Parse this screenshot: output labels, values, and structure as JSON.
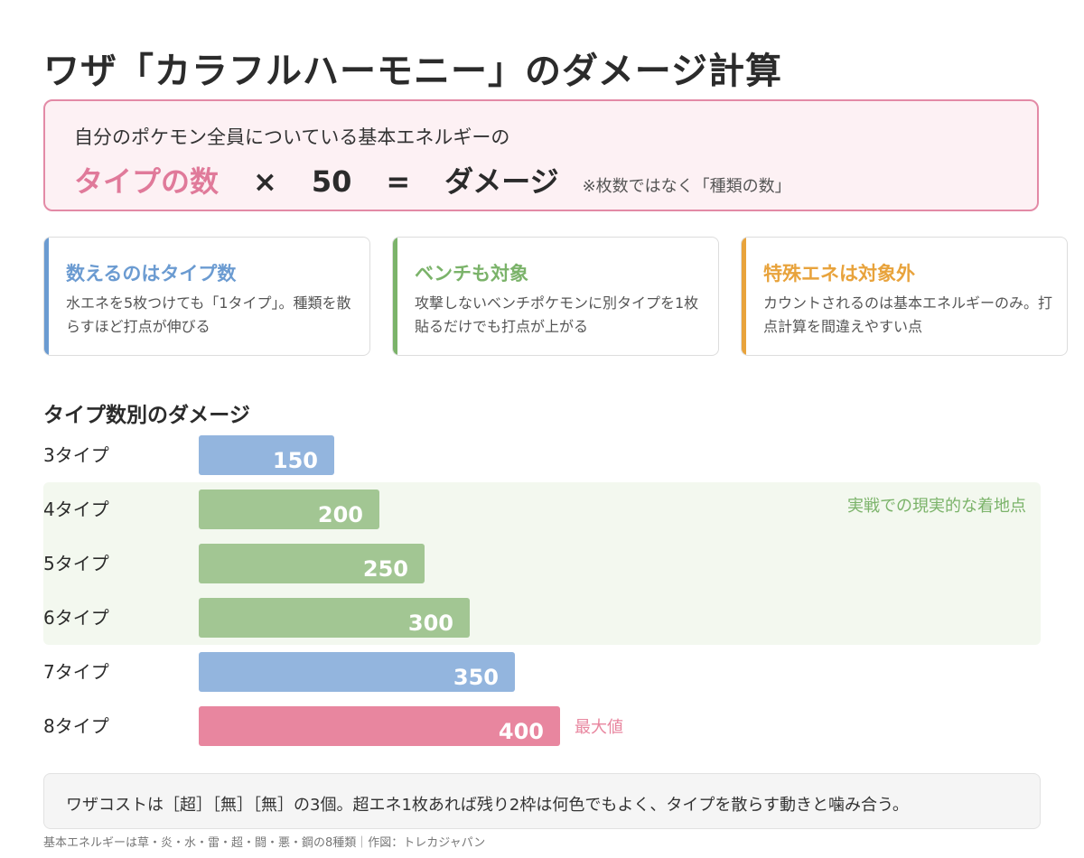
{
  "title": "ワザ「カラフルハーモニー」のダメージ計算",
  "formula": {
    "intro": "自分のポケモン全員についている基本エネルギーの",
    "term": "タイプの数",
    "times": "×",
    "multiplier": "50",
    "equals": "=",
    "result": "ダメージ",
    "note": "※枚数ではなく「種類の数」"
  },
  "cards": [
    {
      "title": "数えるのはタイプ数",
      "text": "水エネを5枚つけても「1タイプ」。種類を散らすほど打点が伸びる",
      "color": "#6b9bd1"
    },
    {
      "title": "ベンチも対象",
      "text": "攻撃しないベンチポケモンに別タイプを1枚貼るだけでも打点が上がる",
      "color": "#7bb36a"
    },
    {
      "title": "特殊エネは対象外",
      "text": "カウントされるのは基本エネルギーのみ。打点計算を間違えやすい点",
      "color": "#e8a33c"
    }
  ],
  "chart_title": "タイプ数別のダメージ",
  "chart_data": {
    "type": "bar",
    "orientation": "horizontal",
    "categories": [
      "3タイプ",
      "4タイプ",
      "5タイプ",
      "6タイプ",
      "7タイプ",
      "8タイプ"
    ],
    "values": [
      150,
      200,
      250,
      300,
      350,
      400
    ],
    "bar_colors": [
      "#93b5de",
      "#a2c693",
      "#a2c693",
      "#a2c693",
      "#93b5de",
      "#e8869f"
    ],
    "xlim": [
      0,
      600
    ],
    "highlight": {
      "categories": [
        "4タイプ",
        "5タイプ",
        "6タイプ"
      ],
      "label": "実戦での現実的な着地点",
      "label_color": "#7bb36a",
      "background": "#f3f8ef"
    },
    "max_annotation": {
      "category": "8タイプ",
      "label": "最大値",
      "color": "#e8869f"
    }
  },
  "footer_note": "ワザコストは［超］［無］［無］の3個。超エネ1枚あれば残り2枠は何色でもよく、タイプを散らす動きと噛み合う。",
  "credit": "基本エネルギーは草・炎・水・雷・超・闘・悪・鋼の8種類｜作図：トレカジャパン"
}
